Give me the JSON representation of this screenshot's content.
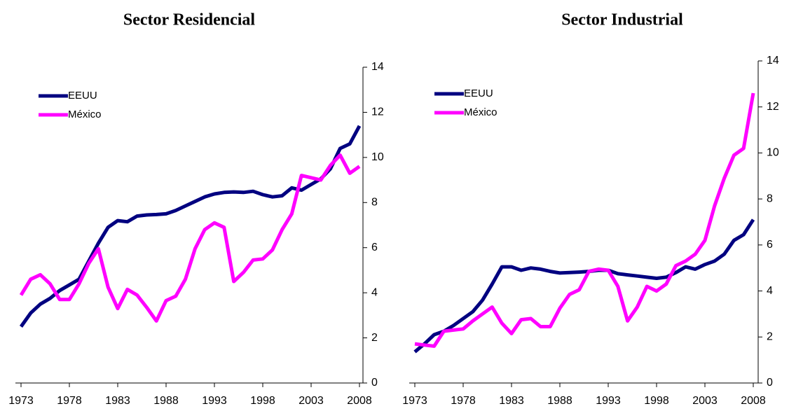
{
  "chart_data": [
    {
      "type": "line",
      "title": "Sector Residencial",
      "categories": [
        "1973",
        null,
        null,
        null,
        null,
        "1978",
        null,
        null,
        null,
        null,
        "1983",
        null,
        null,
        null,
        null,
        "1988",
        null,
        null,
        null,
        null,
        "1993",
        null,
        null,
        null,
        null,
        "1998",
        null,
        null,
        null,
        null,
        "2003",
        null,
        null,
        null,
        null,
        "2008"
      ],
      "series": [
        {
          "name": "EEUU",
          "color": "#000080",
          "values": [
            2.5,
            3.1,
            3.5,
            3.75,
            4.1,
            4.35,
            4.6,
            5.4,
            6.2,
            6.9,
            7.2,
            7.15,
            7.4,
            7.45,
            7.47,
            7.5,
            7.65,
            7.85,
            8.05,
            8.25,
            8.38,
            8.45,
            8.47,
            8.45,
            8.5,
            8.35,
            8.25,
            8.3,
            8.65,
            8.55,
            8.8,
            9.05,
            9.5,
            10.4,
            10.6,
            11.4
          ]
        },
        {
          "name": "México",
          "color": "#ff00ff",
          "values": [
            3.9,
            4.6,
            4.8,
            4.4,
            3.7,
            3.7,
            4.4,
            5.3,
            5.95,
            4.25,
            3.3,
            4.15,
            3.9,
            3.35,
            2.75,
            3.65,
            3.85,
            4.6,
            5.95,
            6.8,
            7.1,
            6.9,
            4.5,
            4.9,
            5.45,
            5.5,
            5.9,
            6.8,
            7.5,
            9.2,
            9.1,
            9.0,
            9.65,
            10.1,
            9.3,
            9.6
          ]
        }
      ],
      "ylim": [
        0,
        14
      ],
      "yticks": [
        0,
        2,
        4,
        6,
        8,
        10,
        12,
        14
      ],
      "legend": "upper left"
    },
    {
      "type": "line",
      "title": "Sector Industrial",
      "categories": [
        "1973",
        null,
        null,
        null,
        null,
        "1978",
        null,
        null,
        null,
        null,
        "1983",
        null,
        null,
        null,
        null,
        "1988",
        null,
        null,
        null,
        null,
        "1993",
        null,
        null,
        null,
        null,
        "1998",
        null,
        null,
        null,
        null,
        "2003",
        null,
        null,
        null,
        null,
        "2008"
      ],
      "series": [
        {
          "name": "EEUU",
          "color": "#000080",
          "values": [
            1.35,
            1.7,
            2.1,
            2.25,
            2.5,
            2.8,
            3.1,
            3.6,
            4.3,
            5.05,
            5.05,
            4.9,
            5.0,
            4.95,
            4.85,
            4.78,
            4.8,
            4.82,
            4.85,
            4.9,
            4.9,
            4.75,
            4.7,
            4.65,
            4.6,
            4.55,
            4.6,
            4.8,
            5.05,
            4.95,
            5.15,
            5.3,
            5.6,
            6.2,
            6.45,
            7.1
          ]
        },
        {
          "name": "México",
          "color": "#ff00ff",
          "values": [
            1.7,
            1.65,
            1.6,
            2.25,
            2.3,
            2.35,
            2.7,
            3.0,
            3.3,
            2.6,
            2.15,
            2.75,
            2.8,
            2.45,
            2.45,
            3.25,
            3.85,
            4.05,
            4.85,
            4.95,
            4.9,
            4.2,
            2.7,
            3.3,
            4.2,
            4.0,
            4.3,
            5.1,
            5.3,
            5.6,
            6.2,
            7.7,
            8.9,
            9.9,
            10.2,
            12.6
          ]
        }
      ],
      "ylim": [
        0,
        14
      ],
      "yticks": [
        0,
        2,
        4,
        6,
        8,
        10,
        12,
        14
      ],
      "legend": "upper left"
    }
  ]
}
